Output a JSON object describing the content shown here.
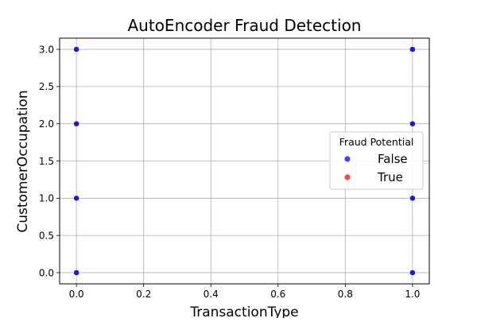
{
  "chart_data": {
    "type": "scatter",
    "title": "AutoEncoder Fraud Detection",
    "xlabel": "TransactionType",
    "ylabel": "CustomerOccupation",
    "xlim": [
      -0.05,
      1.05
    ],
    "ylim": [
      -0.15,
      3.15
    ],
    "xticks": [
      0.0,
      0.2,
      0.4,
      0.6,
      0.8,
      1.0
    ],
    "yticks": [
      0.0,
      0.5,
      1.0,
      1.5,
      2.0,
      2.5,
      3.0
    ],
    "xtick_labels": [
      "0.0",
      "0.2",
      "0.4",
      "0.6",
      "0.8",
      "1.0"
    ],
    "ytick_labels": [
      "0.0",
      "0.5",
      "1.0",
      "1.5",
      "2.0",
      "2.5",
      "3.0"
    ],
    "grid": true,
    "legend": {
      "title": "Fraud Potential",
      "placement": "center-right",
      "entries": [
        {
          "label": "False",
          "color": "#4545e8"
        },
        {
          "label": "True",
          "color": "#f04a4a"
        }
      ]
    },
    "series": [
      {
        "name": "False",
        "color": "#1a1ad6",
        "points": [
          {
            "x": 0,
            "y": 0
          },
          {
            "x": 0,
            "y": 1
          },
          {
            "x": 0,
            "y": 2
          },
          {
            "x": 0,
            "y": 3
          },
          {
            "x": 1,
            "y": 0
          },
          {
            "x": 1,
            "y": 1
          },
          {
            "x": 1,
            "y": 2
          },
          {
            "x": 1,
            "y": 3
          }
        ]
      },
      {
        "name": "True",
        "color": "#f04a4a",
        "points": []
      }
    ]
  }
}
